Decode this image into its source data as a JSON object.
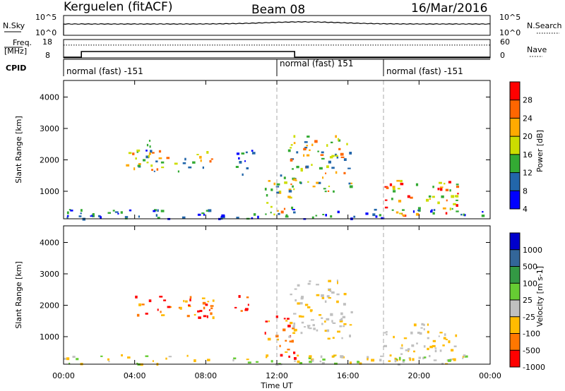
{
  "header": {
    "station": "Kerguelen (fitACF)",
    "beam": "Beam 08",
    "date": "16/Mar/2016"
  },
  "noise_panel": {
    "left_label": "N.Sky",
    "right_label": "N.Search",
    "left_ticks": [
      "10^5",
      "10^0"
    ],
    "right_ticks": [
      "10^5",
      "10^0"
    ]
  },
  "freq_panel": {
    "left_label_top": "Freq.",
    "left_label_bottom": "[MHz]",
    "right_label": "Nave",
    "left_ticks": [
      "18",
      "8"
    ],
    "right_ticks": [
      "60",
      "0"
    ],
    "freq_steps": [
      {
        "t0": 0,
        "t1": 1,
        "value": 8
      },
      {
        "t0": 1,
        "t1": 13,
        "value": 12
      },
      {
        "t0": 13,
        "t1": 24,
        "value": 8
      }
    ],
    "nave_dotted_level": 0.85
  },
  "cpid": {
    "label": "CPID",
    "segments": [
      {
        "start": 0,
        "text": "normal (fast) -151"
      },
      {
        "start": 12,
        "text": "normal (fast) 151"
      },
      {
        "start": 18,
        "text": "normal (fast) -151"
      }
    ]
  },
  "x_axis": {
    "label": "Time UT",
    "range": [
      0,
      24
    ],
    "ticks": [
      {
        "t": 0,
        "label": "00:00"
      },
      {
        "t": 4,
        "label": "04:00"
      },
      {
        "t": 8,
        "label": "08:00"
      },
      {
        "t": 12,
        "label": "12:00"
      },
      {
        "t": 16,
        "label": "16:00"
      },
      {
        "t": 20,
        "label": "20:00"
      },
      {
        "t": 24,
        "label": "00:00"
      }
    ]
  },
  "chart_data": [
    {
      "type": "heatmap",
      "title": "",
      "xlabel": "Time UT",
      "ylabel": "Slant Range [km]",
      "xlim": [
        0,
        24
      ],
      "ylim": [
        180,
        4600
      ],
      "yticks": [
        1000,
        2000,
        3000,
        4000
      ],
      "colorbar": {
        "label": "Power [dB]",
        "ticks": [
          "28",
          "24",
          "20",
          "16",
          "12",
          "8",
          "4"
        ],
        "colors": [
          "#ff0000",
          "#ff6600",
          "#ffaa00",
          "#ccdd00",
          "#33aa33",
          "#2266aa",
          "#0000ff"
        ]
      },
      "regions": [
        {
          "t": [
            3.5,
            8.6
          ],
          "r": [
            1700,
            2400
          ],
          "level": "mid"
        },
        {
          "t": [
            4.6,
            5.1
          ],
          "r": [
            2300,
            3100
          ],
          "level": "low"
        },
        {
          "t": [
            9.6,
            10.8
          ],
          "r": [
            1600,
            2400
          ],
          "level": "low"
        },
        {
          "t": [
            11.3,
            13.0
          ],
          "r": [
            300,
            1800
          ],
          "level": "mid"
        },
        {
          "t": [
            12.6,
            16.2
          ],
          "r": [
            1000,
            2900
          ],
          "level": "mid"
        },
        {
          "t": [
            18.0,
            22.2
          ],
          "r": [
            300,
            1500
          ],
          "level": "high"
        },
        {
          "t": [
            0,
            24
          ],
          "r": [
            200,
            500
          ],
          "level": "low"
        }
      ],
      "vertical_markers": [
        12,
        18
      ]
    },
    {
      "type": "heatmap",
      "title": "",
      "xlabel": "Time UT",
      "ylabel": "Slant Range [km]",
      "xlim": [
        0,
        24
      ],
      "ylim": [
        180,
        4600
      ],
      "yticks": [
        1000,
        2000,
        3000,
        4000
      ],
      "colorbar": {
        "label": "Velocity [m s-1]",
        "ticks": [
          "1000",
          "500",
          "100",
          "25",
          "-25",
          "-100",
          "-500",
          "-1000"
        ],
        "colors": [
          "#0000cc",
          "#336699",
          "#339944",
          "#66cc33",
          "#c0c0c0",
          "#ffbb00",
          "#ff7700",
          "#ff0000"
        ]
      },
      "regions": [
        {
          "t": [
            3.5,
            8.6
          ],
          "r": [
            1700,
            2400
          ],
          "level": "neg"
        },
        {
          "t": [
            9.6,
            10.8
          ],
          "r": [
            1900,
            2400
          ],
          "level": "strongneg"
        },
        {
          "t": [
            11.3,
            13.0
          ],
          "r": [
            300,
            1800
          ],
          "level": "neg"
        },
        {
          "t": [
            12.6,
            16.2
          ],
          "r": [
            1000,
            2900
          ],
          "level": "ground"
        },
        {
          "t": [
            18.0,
            22.2
          ],
          "r": [
            300,
            1500
          ],
          "level": "ground"
        },
        {
          "t": [
            0,
            24
          ],
          "r": [
            200,
            500
          ],
          "level": "slowneg"
        }
      ],
      "vertical_markers": [
        12,
        18
      ]
    }
  ]
}
